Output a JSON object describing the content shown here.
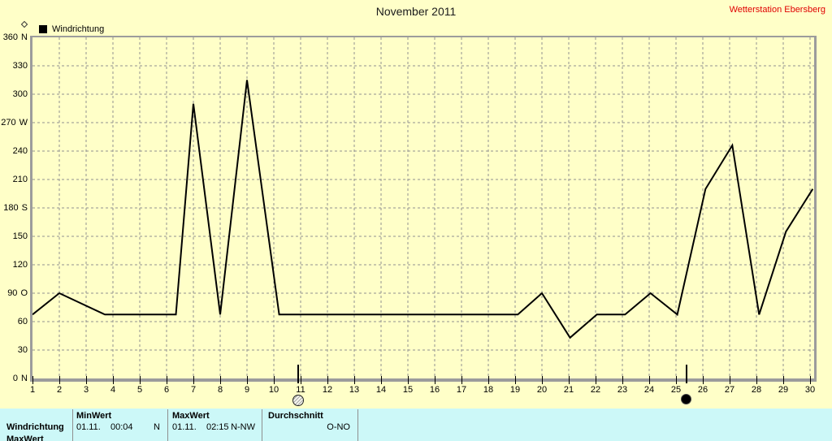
{
  "header": {
    "title": "November 2011",
    "station": "Wetterstation Ebersberg"
  },
  "legend": {
    "label": "Windrichtung"
  },
  "colors": {
    "background": "#ffffc8",
    "panel": "#ccf8f8",
    "axis": "#9c9c9c",
    "grid": "#909090",
    "line": "#000000",
    "station_text": "#e00000"
  },
  "chart_data": {
    "type": "line",
    "title": "November 2011",
    "grid": "dashed",
    "x": {
      "min": 1,
      "max": 30,
      "ticks": [
        1,
        2,
        3,
        4,
        5,
        6,
        7,
        8,
        9,
        10,
        11,
        12,
        13,
        14,
        15,
        16,
        17,
        18,
        19,
        20,
        21,
        22,
        23,
        24,
        25,
        26,
        27,
        28,
        29,
        30
      ]
    },
    "y": {
      "min": 0,
      "max": 360,
      "step": 30,
      "tick_labels": [
        {
          "v": 360,
          "num": "360",
          "dir": "N"
        },
        {
          "v": 330,
          "num": "330",
          "dir": ""
        },
        {
          "v": 300,
          "num": "300",
          "dir": ""
        },
        {
          "v": 270,
          "num": "270",
          "dir": "W"
        },
        {
          "v": 240,
          "num": "240",
          "dir": ""
        },
        {
          "v": 210,
          "num": "210",
          "dir": ""
        },
        {
          "v": 180,
          "num": "180",
          "dir": "S"
        },
        {
          "v": 150,
          "num": "150",
          "dir": ""
        },
        {
          "v": 120,
          "num": "120",
          "dir": ""
        },
        {
          "v": 90,
          "num": "90",
          "dir": "O"
        },
        {
          "v": 60,
          "num": "60",
          "dir": ""
        },
        {
          "v": 30,
          "num": "30",
          "dir": ""
        },
        {
          "v": 0,
          "num": "0",
          "dir": "N"
        }
      ]
    },
    "series": [
      {
        "name": "Windrichtung",
        "color": "#000000",
        "points": [
          [
            1,
            67.5
          ],
          [
            2,
            90
          ],
          [
            3.7,
            67.5
          ],
          [
            6.35,
            67.5
          ],
          [
            7,
            290
          ],
          [
            8,
            67.5
          ],
          [
            9,
            315
          ],
          [
            10.2,
            67.5
          ],
          [
            19.1,
            67.5
          ],
          [
            20,
            90
          ],
          [
            21.05,
            43
          ],
          [
            22.05,
            67.5
          ],
          [
            23.1,
            67.5
          ],
          [
            24.05,
            90
          ],
          [
            25.05,
            67.5
          ],
          [
            26.1,
            200
          ],
          [
            27.1,
            246
          ],
          [
            28.1,
            67.5
          ],
          [
            29.1,
            155
          ],
          [
            30.1,
            200
          ]
        ]
      }
    ],
    "moon_markers": [
      {
        "day": 10.9,
        "phase": "full-moon"
      },
      {
        "day": 25.4,
        "phase": "new-moon"
      }
    ]
  },
  "stats_table": {
    "row_label": "Windrichtung",
    "columns": [
      {
        "header": "MinWert",
        "date": "01.11.",
        "time": "00:04",
        "value": "N"
      },
      {
        "header": "MaxWert",
        "date": "01.11.",
        "time": "02:15",
        "value": "N-NW"
      },
      {
        "header": "Durchschnitt",
        "date": "",
        "time": "",
        "value": "O-NO"
      }
    ],
    "partial_next_row_label": "MaxWert"
  }
}
